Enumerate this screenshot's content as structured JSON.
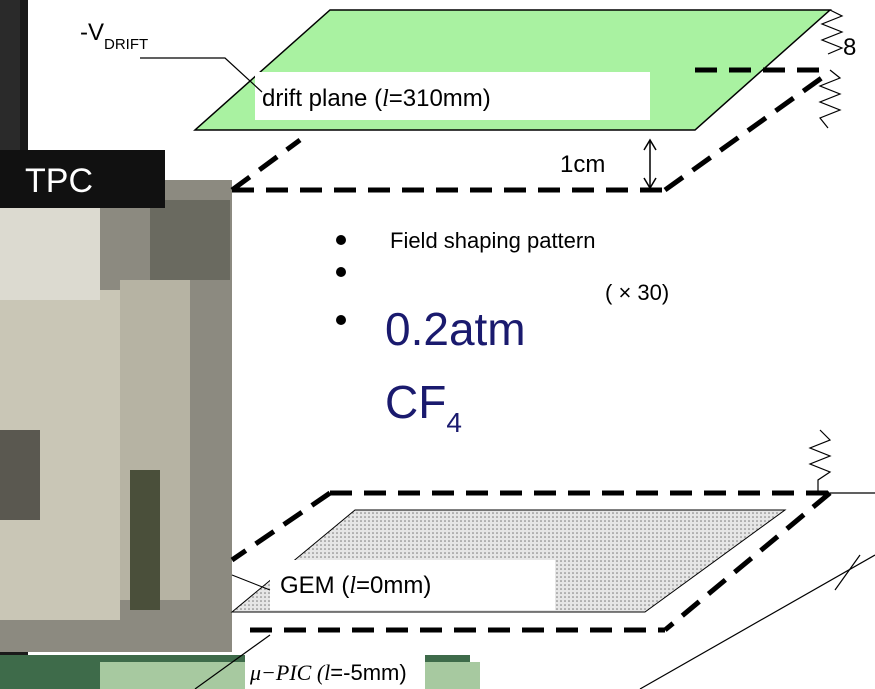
{
  "title_label": {
    "prefix": "-V",
    "subscript": "DRIFT"
  },
  "resistor_count": "8",
  "drift_plane": {
    "prefix": "drift plane  (",
    "variable": "l",
    "suffix": "=310mm)"
  },
  "photo_label": "TPC",
  "gap_label": "1cm",
  "bullets": [
    "Field shaping pattern",
    "",
    "0.2atm"
  ],
  "repeat_label": "( × 30)",
  "gas": {
    "formula": "CF",
    "subscript": "4"
  },
  "gem": {
    "prefix": "GEM  (",
    "variable": "l",
    "suffix": "=0mm)"
  },
  "upic": {
    "prefix": "μ−PIC (",
    "variable": "l",
    "suffix": "=-5mm)"
  }
}
